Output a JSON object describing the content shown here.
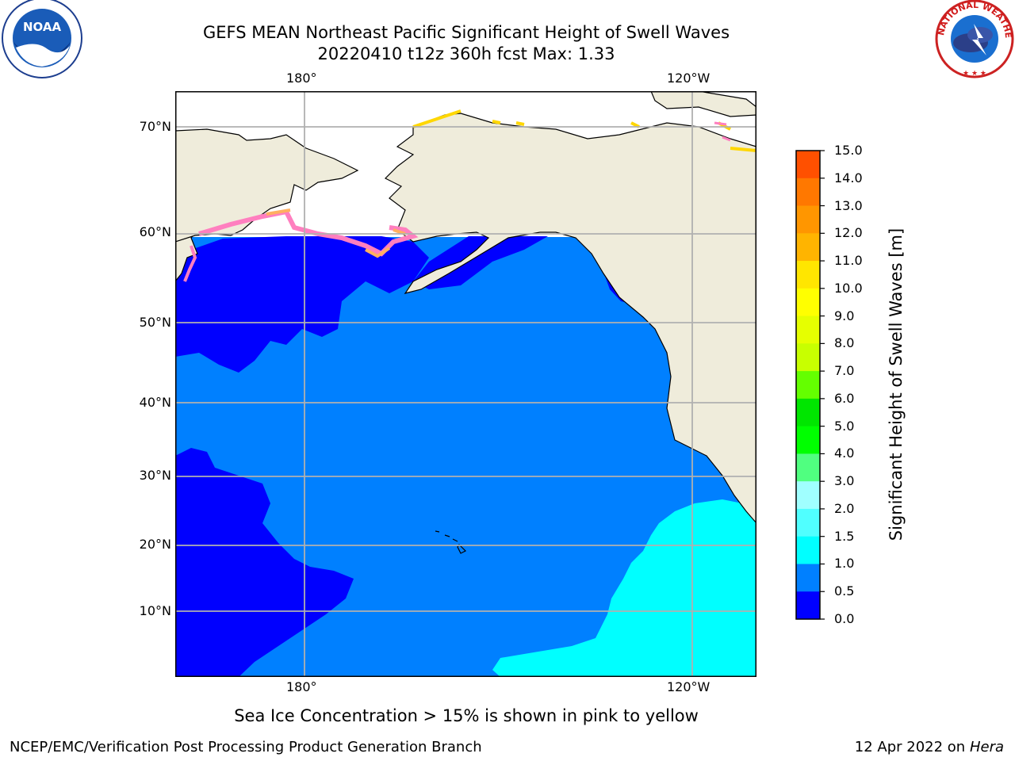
{
  "title": {
    "line1": "GEFS MEAN Northeast Pacific Significant Height of Swell Waves",
    "line2": "20220410 t12z 360h fcst   Max: 1.33"
  },
  "map": {
    "lon_labels_top": [
      "180°",
      "120°W"
    ],
    "lon_labels_bottom": [
      "180°",
      "120°W"
    ],
    "lat_labels": [
      "70°N",
      "60°N",
      "50°N",
      "40°N",
      "30°N",
      "20°N",
      "10°N"
    ],
    "colors": {
      "land": "#efecdb",
      "ice_free_unknown": "#ffffff",
      "swell_0_05": "#0000ff",
      "swell_05_10": "#0080ff",
      "swell_10_15": "#00ffff",
      "sea_ice_pink": "#ff7fbf",
      "sea_ice_yellow": "#ffd700",
      "grid": "#b0b0b0"
    }
  },
  "colorbar": {
    "title": "Significant Height of Swell Waves [m]",
    "ticks": [
      "15.0",
      "14.0",
      "13.0",
      "12.0",
      "11.0",
      "10.0",
      "9.0",
      "8.0",
      "7.0",
      "6.0",
      "5.0",
      "4.0",
      "3.0",
      "2.0",
      "1.5",
      "1.0",
      "0.5",
      "0.0"
    ],
    "colors": [
      "#ff0000",
      "#ff2800",
      "#ff5000",
      "#ff7800",
      "#ff9600",
      "#ffb400",
      "#ffe600",
      "#ffff00",
      "#e6ff00",
      "#c8ff00",
      "#64ff00",
      "#00e600",
      "#00ff00",
      "#50ff80",
      "#a0ffff",
      "#50ffff",
      "#00ffff",
      "#0080ff",
      "#0000ff"
    ]
  },
  "note": "Sea Ice Concentration > 15% is shown in pink to yellow",
  "footer": {
    "left": "NCEP/EMC/Verification Post Processing Product Generation Branch",
    "right_prefix": "12 Apr 2022 on ",
    "right_host": "Hera"
  },
  "logos": {
    "noaa_text": "NOAA",
    "nws_text": "NATIONAL WEATHER SERVICE"
  }
}
